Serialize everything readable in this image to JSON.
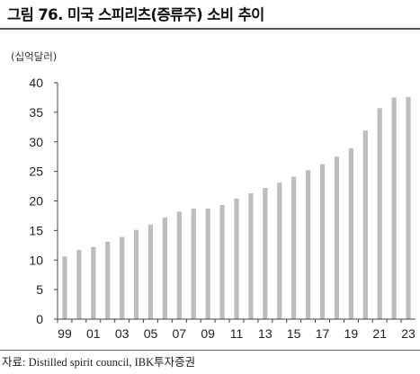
{
  "title": "그림 76. 미국 스피리츠(증류주) 소비 추이",
  "unit_label": "(십억달러)",
  "source": "자료: Distilled spirit council, IBK투자증권",
  "colors": {
    "bar": "#bdbdbd",
    "axis": "#444444"
  },
  "chart_data": {
    "type": "bar",
    "title": "그림 76. 미국 스피리츠(증류주) 소비 추이",
    "ylabel": "(십억달러)",
    "xlabel": "",
    "ylim": [
      0,
      40
    ],
    "yticks": [
      0,
      5,
      10,
      15,
      20,
      25,
      30,
      35,
      40
    ],
    "grid": false,
    "legend": "none",
    "categories": [
      "99",
      "00",
      "01",
      "02",
      "03",
      "04",
      "05",
      "06",
      "07",
      "08",
      "09",
      "10",
      "11",
      "12",
      "13",
      "14",
      "15",
      "16",
      "17",
      "18",
      "19",
      "20",
      "21",
      "22",
      "23"
    ],
    "x_tick_labels": [
      "99",
      "01",
      "03",
      "05",
      "07",
      "09",
      "11",
      "13",
      "15",
      "17",
      "19",
      "21",
      "23"
    ],
    "values": [
      10.6,
      11.7,
      12.2,
      13.1,
      13.9,
      15.1,
      16.0,
      17.2,
      18.2,
      18.7,
      18.7,
      19.3,
      20.4,
      21.3,
      22.2,
      23.1,
      24.1,
      25.2,
      26.2,
      27.5,
      28.9,
      31.9,
      35.7,
      37.5,
      37.6
    ]
  }
}
